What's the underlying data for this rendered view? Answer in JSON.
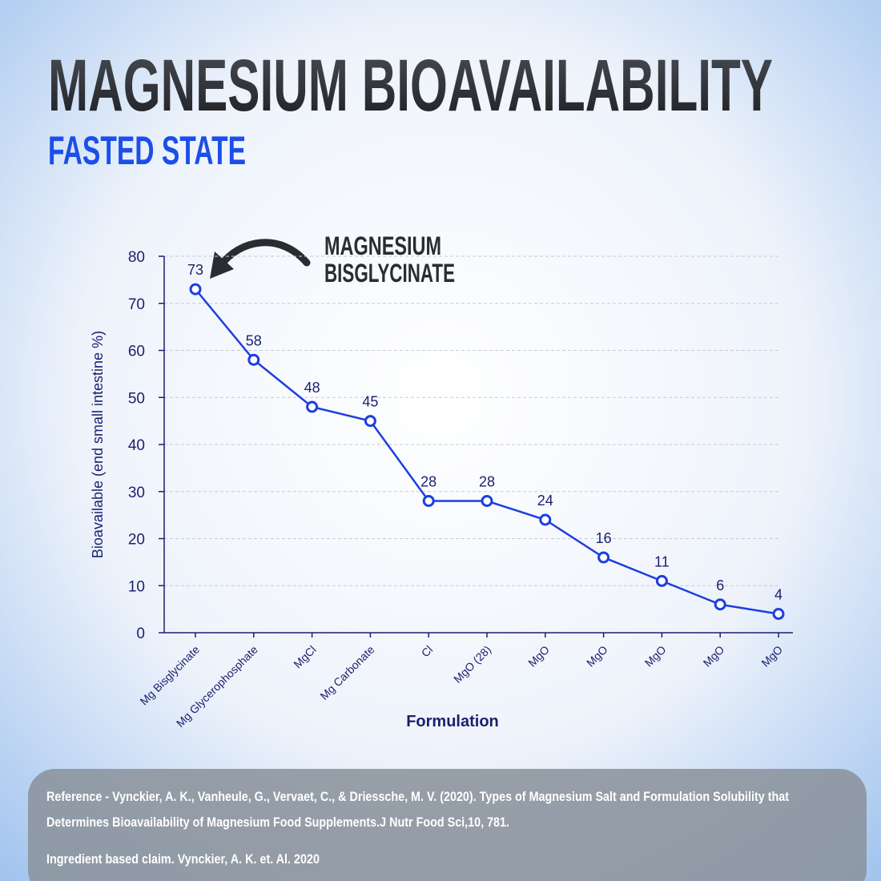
{
  "chart_data": {
    "type": "line",
    "title": "MAGNESIUM BIOAVAILABILITY",
    "subtitle": "FASTED STATE",
    "annotation": [
      "MAGNESIUM",
      "BISGLYCINATE"
    ],
    "x_label": "Formulation",
    "y_label": "Bioavailable (end small intestine %)",
    "categories": [
      "Mg Bisglycinate",
      "Mg Glycerophosphate",
      "MgCl",
      "Mg Carbonate",
      "Cl",
      "MgO (28)",
      "MgO",
      "MgO",
      "MgO",
      "MgO",
      "MgO"
    ],
    "values": [
      73,
      58,
      48,
      45,
      28,
      28,
      24,
      16,
      11,
      6,
      4
    ],
    "color": "#1c3fe0",
    "ylim": [
      0,
      80
    ],
    "yticks": [
      0,
      10,
      20,
      30,
      40,
      50,
      60,
      70,
      80
    ],
    "grid": true
  },
  "footer": {
    "reference": [
      "Reference - Vynckier, A. K., Vanheule, G., Vervaet, C., & Driessche, M. V. (2020). Types of Magnesium Salt and Formulation Solubility that",
      "Determines Bioavailability of Magnesium Food Supplements.J Nutr Food Sci,10, 781."
    ],
    "claim": "Ingredient based claim. Vynckier, A. K. et. Al. 2020"
  }
}
